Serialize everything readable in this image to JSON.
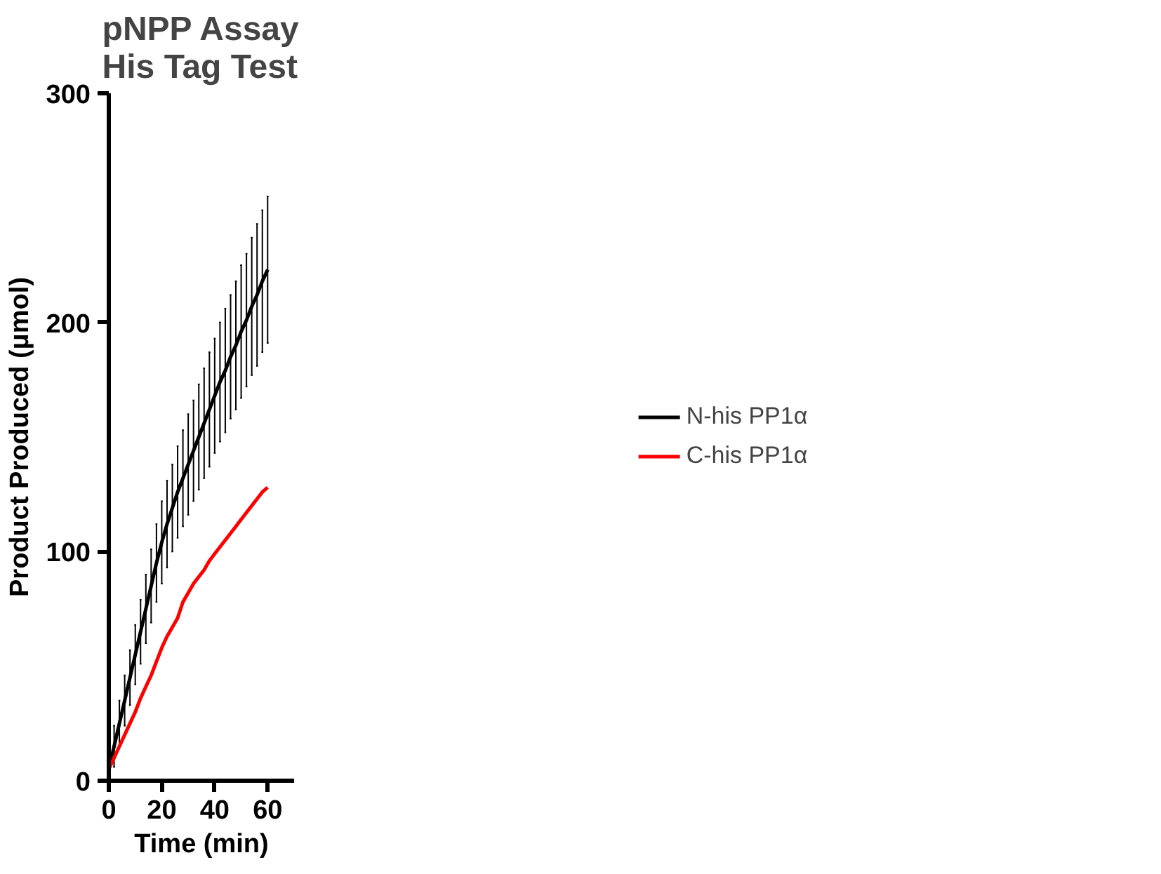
{
  "chart_data": {
    "type": "line",
    "title": "pNPP Assay\nHis Tag Test",
    "xlabel": "Time (min)",
    "ylabel": "Product Produced (μmol)",
    "x": [
      0,
      2,
      4,
      6,
      8,
      10,
      12,
      14,
      16,
      18,
      20,
      22,
      24,
      26,
      28,
      30,
      32,
      34,
      36,
      38,
      40,
      42,
      44,
      46,
      48,
      50,
      52,
      54,
      56,
      58,
      60
    ],
    "series": [
      {
        "name": "N-his PP1α",
        "color": "#000000",
        "values": [
          5,
          15,
          25,
          35,
          45,
          55,
          65,
          75,
          85,
          95,
          104,
          112,
          119,
          126,
          132,
          138,
          144,
          150,
          156,
          162,
          168,
          174,
          179,
          185,
          190,
          196,
          201,
          207,
          212,
          218,
          223
        ],
        "errors": [
          8,
          9,
          10,
          11,
          12,
          13,
          14,
          15,
          16,
          17,
          18,
          19,
          19,
          20,
          21,
          22,
          22,
          23,
          24,
          25,
          25,
          26,
          27,
          27,
          28,
          29,
          29,
          30,
          31,
          31,
          32
        ]
      },
      {
        "name": "C-his PP1α",
        "color": "#ff0000",
        "values": [
          5,
          10,
          15,
          20,
          25,
          30,
          36,
          41,
          46,
          52,
          58,
          63,
          67,
          71,
          78,
          82,
          86,
          89,
          92,
          96,
          99,
          102,
          105,
          108,
          111,
          114,
          117,
          120,
          123,
          126,
          128
        ]
      }
    ],
    "xlim": [
      0,
      70
    ],
    "ylim": [
      0,
      300
    ],
    "xticks": [
      0,
      20,
      40,
      60
    ],
    "yticks": [
      0,
      100,
      200,
      300
    ],
    "grid": false,
    "legend": "right",
    "marker": "none",
    "line_style": "solid"
  }
}
